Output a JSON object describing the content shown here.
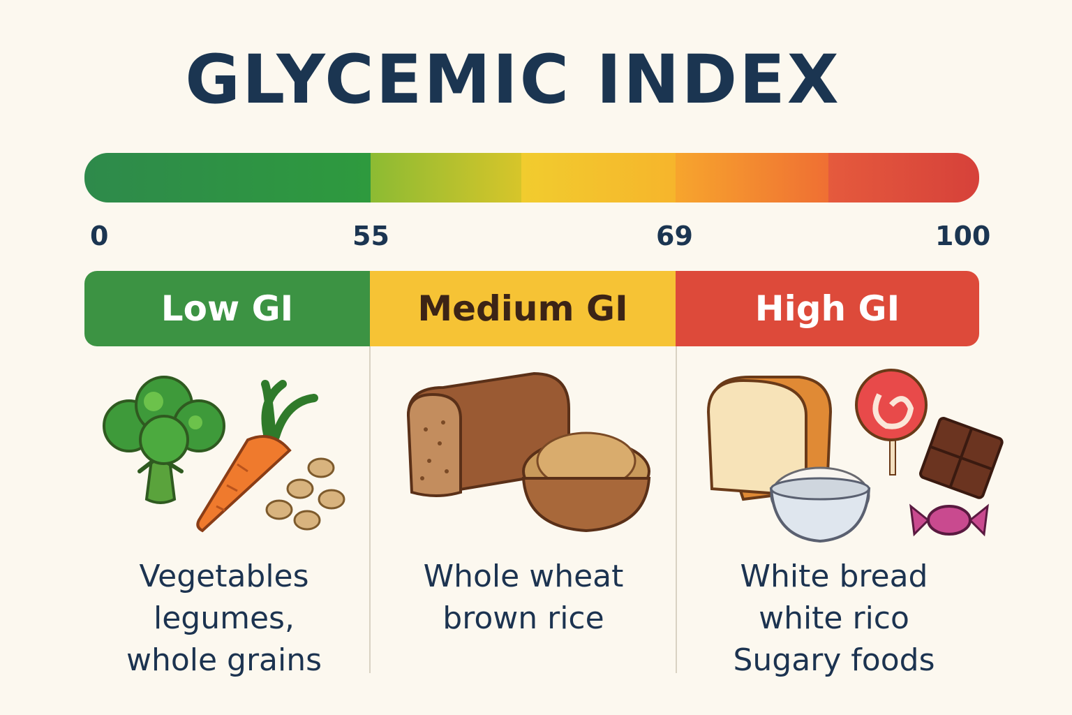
{
  "title": "GLYCEMIC INDEX",
  "scale": {
    "ticks": [
      "0",
      "55",
      "69",
      "100"
    ],
    "colors": [
      "#2e8a4b",
      "#8cbb33",
      "#f1cc2e",
      "#ef6f33",
      "#d6413a"
    ]
  },
  "categories": [
    {
      "label": "Low GI",
      "color": "#3c9343",
      "foods": [
        "Vegetables",
        "legumes,",
        "whole grains"
      ],
      "icons": [
        "broccoli-icon",
        "carrot-icon",
        "beans-icon"
      ]
    },
    {
      "label": "Medium GI",
      "color": "#f6c335",
      "foods": [
        "Whole wheat",
        "brown rice"
      ],
      "icons": [
        "whole-wheat-bread-icon",
        "brown-rice-bowl-icon"
      ]
    },
    {
      "label": "High GI",
      "color": "#dd4a3a",
      "foods": [
        "White bread",
        "white rico",
        "Sugary foods"
      ],
      "icons": [
        "white-bread-icon",
        "lollipop-icon",
        "chocolate-icon",
        "white-rice-bowl-icon",
        "candy-icon"
      ]
    }
  ]
}
